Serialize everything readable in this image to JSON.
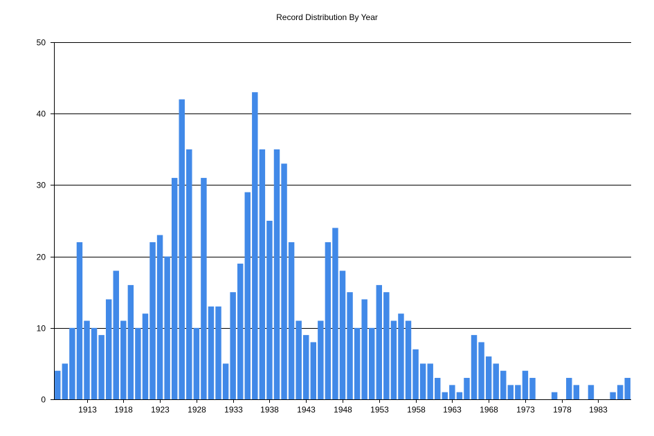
{
  "chart_data": {
    "type": "bar",
    "title": "Record Distribution By Year",
    "xlabel": "",
    "ylabel": "",
    "ylim": [
      0,
      50
    ],
    "y_ticks": [
      0,
      10,
      20,
      30,
      40,
      50
    ],
    "x_tick_labels": [
      1913,
      1918,
      1923,
      1928,
      1933,
      1938,
      1943,
      1948,
      1953,
      1958,
      1963,
      1968,
      1973,
      1978,
      1983
    ],
    "grid": "horizontal",
    "bar_color": "#4189E8",
    "categories": [
      1909,
      1910,
      1911,
      1912,
      1913,
      1914,
      1915,
      1916,
      1917,
      1918,
      1919,
      1920,
      1921,
      1922,
      1923,
      1924,
      1925,
      1926,
      1927,
      1928,
      1929,
      1930,
      1931,
      1932,
      1933,
      1934,
      1935,
      1936,
      1937,
      1938,
      1939,
      1940,
      1941,
      1942,
      1943,
      1944,
      1945,
      1946,
      1947,
      1948,
      1949,
      1950,
      1951,
      1952,
      1953,
      1954,
      1955,
      1956,
      1957,
      1958,
      1959,
      1960,
      1961,
      1962,
      1963,
      1964,
      1965,
      1966,
      1967,
      1968,
      1969,
      1970,
      1971,
      1972,
      1973,
      1974,
      1975,
      1976,
      1977,
      1978,
      1979,
      1980,
      1981,
      1982,
      1983,
      1984,
      1985,
      1986,
      1987
    ],
    "values": [
      4,
      5,
      10,
      22,
      11,
      10,
      9,
      14,
      18,
      11,
      16,
      10,
      12,
      22,
      23,
      20,
      31,
      42,
      35,
      10,
      31,
      13,
      13,
      5,
      15,
      19,
      29,
      43,
      35,
      25,
      35,
      33,
      22,
      11,
      9,
      8,
      11,
      22,
      24,
      18,
      15,
      10,
      14,
      10,
      16,
      15,
      11,
      12,
      11,
      7,
      5,
      5,
      3,
      1,
      2,
      1,
      3,
      9,
      8,
      6,
      5,
      4,
      2,
      2,
      4,
      3,
      0,
      0,
      1,
      0,
      3,
      2,
      0,
      2,
      0,
      0,
      1,
      2,
      3
    ]
  }
}
